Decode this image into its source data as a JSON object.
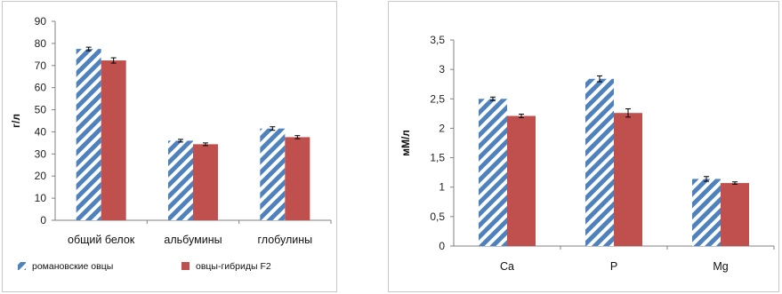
{
  "chart_data": [
    {
      "type": "bar",
      "title": "",
      "xlabel": "",
      "ylabel": "г/л",
      "ylim": [
        0,
        90
      ],
      "yticks": [
        0,
        10,
        20,
        30,
        40,
        50,
        60,
        70,
        80,
        90
      ],
      "categories": [
        "общий белок",
        "альбумины",
        "глобулины"
      ],
      "series": [
        {
          "name": "романовские овцы",
          "values": [
            77.5,
            36,
            41.5
          ],
          "errors": [
            0.8,
            0.6,
            0.8
          ],
          "color": "#4f81bd",
          "pattern": "diagonal-stripes"
        },
        {
          "name": "овцы-гибриды F2",
          "values": [
            72.3,
            34.4,
            37.6
          ],
          "errors": [
            1.2,
            0.6,
            0.7
          ],
          "color": "#c0504d",
          "pattern": "solid"
        }
      ],
      "grid": false,
      "legend": "bottom"
    },
    {
      "type": "bar",
      "title": "",
      "xlabel": "",
      "ylabel": "мМ/л",
      "ylim": [
        0,
        3.5
      ],
      "yticks": [
        "0",
        "0,5",
        "1",
        "1,5",
        "2",
        "2,5",
        "3",
        "3,5"
      ],
      "categories": [
        "Ca",
        "P",
        "Mg"
      ],
      "series": [
        {
          "values": [
            2.5,
            2.84,
            1.14
          ],
          "errors": [
            0.03,
            0.05,
            0.04
          ],
          "color": "#4f81bd",
          "pattern": "diagonal-stripes"
        },
        {
          "values": [
            2.21,
            2.26,
            1.07
          ],
          "errors": [
            0.03,
            0.07,
            0.02
          ],
          "color": "#c0504d",
          "pattern": "solid"
        }
      ],
      "grid": false,
      "legend": "none"
    }
  ]
}
